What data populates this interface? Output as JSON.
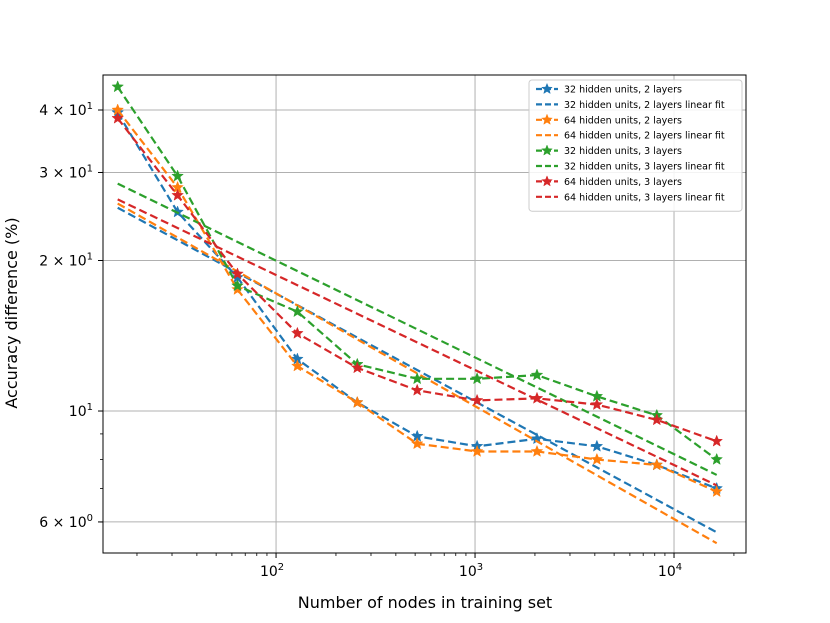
{
  "chart_data": {
    "type": "line",
    "xscale": "log",
    "yscale": "log",
    "xlabel": "Number of nodes in training set",
    "ylabel": "Accuracy difference (%)",
    "xlim": [
      13.5,
      23000
    ],
    "ylim": [
      5.2,
      47
    ],
    "grid": true,
    "legend_position": "top-right",
    "x": [
      16,
      32,
      64,
      128,
      256,
      512,
      1024,
      2048,
      4096,
      8192,
      16384
    ],
    "xticks": [
      {
        "value": 100,
        "base": "10",
        "exp": "2"
      },
      {
        "value": 1000,
        "base": "10",
        "exp": "3"
      },
      {
        "value": 10000,
        "base": "10",
        "exp": "4"
      }
    ],
    "yticks": [
      {
        "value": 40,
        "label": "4 × 10",
        "exp": "1"
      },
      {
        "value": 30,
        "label": "3 × 10",
        "exp": "1"
      },
      {
        "value": 20,
        "label": "2 × 10",
        "exp": "1"
      },
      {
        "value": 10,
        "label": "10",
        "exp": "1"
      },
      {
        "value": 6,
        "label": "6 × 10",
        "exp": "0"
      }
    ],
    "series": [
      {
        "name": "32 hidden units, 2 layers",
        "color": "#1f77b4",
        "style": "star",
        "values": [
          39.5,
          25.0,
          18.5,
          12.7,
          10.4,
          8.9,
          8.5,
          8.8,
          8.5,
          7.8,
          7.0
        ]
      },
      {
        "name": "32 hidden units, 2 layers linear fit",
        "color": "#1f77b4",
        "style": "dashed",
        "fit": [
          25.5,
          5.72
        ]
      },
      {
        "name": "64 hidden units, 2 layers",
        "color": "#ff7f0e",
        "style": "star",
        "values": [
          40.0,
          28.0,
          17.5,
          12.3,
          10.4,
          8.6,
          8.3,
          8.3,
          8.0,
          7.8,
          6.9
        ]
      },
      {
        "name": "64 hidden units, 2 layers linear fit",
        "color": "#ff7f0e",
        "style": "dashed",
        "fit": [
          26.0,
          5.44
        ]
      },
      {
        "name": "32 hidden units, 3 layers",
        "color": "#2ca02c",
        "style": "star",
        "values": [
          44.5,
          29.5,
          17.8,
          15.8,
          12.4,
          11.6,
          11.6,
          11.8,
          10.7,
          9.8,
          8.0
        ]
      },
      {
        "name": "32 hidden units, 3 layers linear fit",
        "color": "#2ca02c",
        "style": "dashed",
        "fit": [
          28.5,
          7.45
        ]
      },
      {
        "name": "64 hidden units, 3 layers",
        "color": "#d62728",
        "style": "star",
        "values": [
          38.5,
          27.0,
          18.8,
          14.3,
          12.2,
          11.0,
          10.5,
          10.6,
          10.3,
          9.6,
          8.7
        ]
      },
      {
        "name": "64 hidden units, 3 layers linear fit",
        "color": "#d62728",
        "style": "dashed",
        "fit": [
          26.5,
          7.1
        ]
      }
    ]
  }
}
